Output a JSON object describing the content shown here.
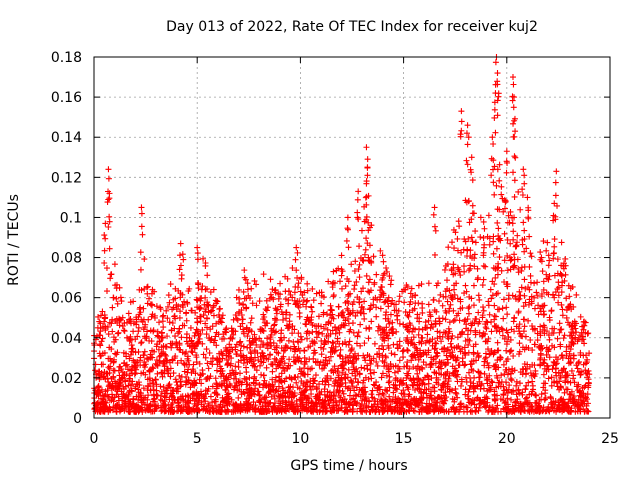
{
  "chart_data": {
    "type": "scatter",
    "title": "Day 013 of 2022, Rate Of TEC Index for receiver kuj2",
    "xlabel": "GPS time / hours",
    "ylabel": "ROTI / TECUs",
    "xlim": [
      0,
      25
    ],
    "ylim": [
      0,
      0.18
    ],
    "x_ticks": [
      0,
      5,
      10,
      15,
      20,
      25
    ],
    "x_tick_labels": [
      "0",
      "5",
      "10",
      "15",
      "20",
      "25"
    ],
    "y_ticks": [
      0,
      0.02,
      0.04,
      0.06,
      0.08,
      0.1,
      0.12,
      0.14,
      0.16,
      0.18
    ],
    "y_tick_labels": [
      "0",
      "0.02",
      "0.04",
      "0.06",
      "0.08",
      "0.1",
      "0.12",
      "0.14",
      "0.16",
      "0.18"
    ],
    "grid": true,
    "marker": "plus",
    "series": [
      {
        "color": "#ff0000",
        "envelope_x": [
          0,
          0.5,
          0.8,
          1.0,
          1.5,
          2.0,
          2.4,
          3.0,
          3.5,
          4.0,
          4.3,
          4.8,
          5.3,
          6.0,
          6.5,
          7.0,
          7.5,
          8.0,
          8.5,
          9.0,
          9.8,
          10.2,
          10.8,
          11.5,
          12.0,
          12.5,
          13.2,
          13.8,
          14.5,
          15.0,
          15.5,
          16.0,
          16.5,
          17.0,
          17.5,
          18.0,
          18.5,
          19.0,
          19.5,
          20.0,
          20.3,
          20.6,
          21.0,
          21.5,
          22.0,
          22.3,
          22.8,
          23.3,
          23.8,
          24.0
        ],
        "envelope_y": [
          0.05,
          0.06,
          0.1,
          0.085,
          0.06,
          0.055,
          0.09,
          0.065,
          0.06,
          0.075,
          0.085,
          0.06,
          0.082,
          0.065,
          0.045,
          0.07,
          0.078,
          0.07,
          0.075,
          0.07,
          0.078,
          0.075,
          0.065,
          0.068,
          0.085,
          0.078,
          0.115,
          0.085,
          0.07,
          0.068,
          0.07,
          0.065,
          0.075,
          0.085,
          0.1,
          0.13,
          0.105,
          0.105,
          0.15,
          0.105,
          0.14,
          0.11,
          0.1,
          0.085,
          0.095,
          0.105,
          0.085,
          0.065,
          0.055,
          0.05
        ],
        "peaks": [
          {
            "x": 0.7,
            "y": 0.124
          },
          {
            "x": 0.75,
            "y": 0.112
          },
          {
            "x": 0.55,
            "y": 0.097
          },
          {
            "x": 2.3,
            "y": 0.105
          },
          {
            "x": 4.2,
            "y": 0.087
          },
          {
            "x": 5.0,
            "y": 0.085
          },
          {
            "x": 9.8,
            "y": 0.085
          },
          {
            "x": 11.6,
            "y": 0.073
          },
          {
            "x": 12.3,
            "y": 0.1
          },
          {
            "x": 12.8,
            "y": 0.113
          },
          {
            "x": 13.2,
            "y": 0.135
          },
          {
            "x": 13.25,
            "y": 0.121
          },
          {
            "x": 16.5,
            "y": 0.105
          },
          {
            "x": 17.8,
            "y": 0.153
          },
          {
            "x": 18.1,
            "y": 0.146
          },
          {
            "x": 18.3,
            "y": 0.13
          },
          {
            "x": 19.5,
            "y": 0.18
          },
          {
            "x": 19.55,
            "y": 0.172
          },
          {
            "x": 19.45,
            "y": 0.162
          },
          {
            "x": 19.3,
            "y": 0.14
          },
          {
            "x": 20.0,
            "y": 0.133
          },
          {
            "x": 20.3,
            "y": 0.17
          },
          {
            "x": 20.35,
            "y": 0.16
          },
          {
            "x": 20.4,
            "y": 0.143
          },
          {
            "x": 20.8,
            "y": 0.124
          },
          {
            "x": 21.0,
            "y": 0.11
          },
          {
            "x": 22.4,
            "y": 0.123
          },
          {
            "x": 22.3,
            "y": 0.107
          }
        ]
      }
    ]
  }
}
